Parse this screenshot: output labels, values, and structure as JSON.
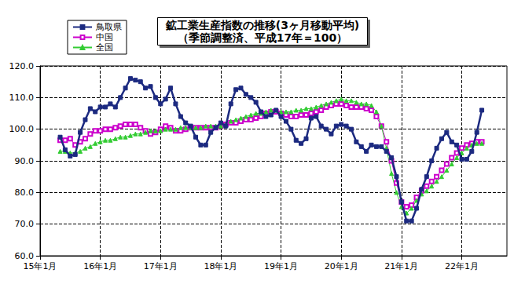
{
  "chart_data": {
    "type": "line",
    "title": "鉱工業生産指数の推移(3ヶ月移動平均)",
    "subtitle": "（季節調整済、平成17年＝100）",
    "categories": [
      "15年1月",
      null,
      null,
      null,
      null,
      null,
      null,
      null,
      null,
      null,
      null,
      null,
      "16年1月",
      null,
      null,
      null,
      null,
      null,
      null,
      null,
      null,
      null,
      null,
      null,
      "17年1月",
      null,
      null,
      null,
      null,
      null,
      null,
      null,
      null,
      null,
      null,
      null,
      "18年1月",
      null,
      null,
      null,
      null,
      null,
      null,
      null,
      null,
      null,
      null,
      null,
      "19年1月",
      null,
      null,
      null,
      null,
      null,
      null,
      null,
      null,
      null,
      null,
      null,
      "20年1月",
      null,
      null,
      null,
      null,
      null,
      null,
      null,
      null,
      null,
      null,
      null,
      "21年1月",
      null,
      null,
      null,
      null,
      null,
      null,
      null,
      null,
      null,
      null,
      null,
      "22年1月",
      null,
      null,
      null,
      null,
      null,
      null,
      null,
      null,
      null
    ],
    "series": [
      {
        "name": "鳥取県",
        "color": "#1c2a80",
        "marker": "square",
        "values": [
          null,
          null,
          null,
          null,
          97.5,
          93.5,
          91.5,
          92,
          99,
          103,
          106.5,
          105.5,
          107,
          107,
          108,
          107,
          110,
          113,
          116,
          115.5,
          115,
          113,
          113.5,
          110,
          108,
          109.5,
          113,
          108,
          104,
          102,
          101,
          97.5,
          95,
          95,
          99,
          100.5,
          102,
          101,
          108,
          112.5,
          113,
          111,
          110,
          108.5,
          105.5,
          104,
          104.5,
          106,
          104,
          102.5,
          100,
          96.5,
          95.5,
          97,
          103.5,
          104,
          101,
          100,
          98.5,
          101,
          101.5,
          101,
          100,
          96,
          94.5,
          93,
          95,
          94.5,
          94.5,
          93,
          91,
          85,
          77,
          71,
          71,
          75,
          81,
          85,
          90,
          94,
          97,
          99,
          96,
          95,
          90.5,
          90.5,
          93,
          99,
          106,
          null,
          null,
          null,
          null,
          null
        ]
      },
      {
        "name": "中国",
        "color": "#cc00cc",
        "marker": "square_open",
        "values": [
          null,
          null,
          null,
          null,
          96.5,
          96.5,
          97,
          95,
          96,
          97,
          98.5,
          99.5,
          99.5,
          100,
          100,
          100.5,
          101,
          101.5,
          101.5,
          101.5,
          100.5,
          99.5,
          98.5,
          99,
          100,
          101,
          100.5,
          99.5,
          99.5,
          100,
          100.5,
          100.5,
          100.5,
          100.5,
          100.5,
          100.5,
          101,
          101.5,
          102,
          102,
          102.5,
          103,
          103,
          103.5,
          104,
          105,
          105.5,
          105.5,
          105,
          104.5,
          104,
          104,
          104.5,
          104.5,
          105,
          105.5,
          106,
          107,
          107.5,
          108,
          108,
          107.5,
          107,
          107,
          107,
          106.5,
          106,
          104,
          101,
          96,
          90,
          83,
          77,
          75.5,
          76,
          78.5,
          80.5,
          82,
          83.5,
          85,
          87,
          89,
          91,
          92.5,
          94,
          95,
          95.5,
          96,
          96,
          null,
          null,
          null,
          null,
          null
        ]
      },
      {
        "name": "全国",
        "color": "#33cc33",
        "marker": "triangle",
        "values": [
          null,
          null,
          null,
          null,
          93,
          93,
          92.5,
          92.5,
          93,
          94,
          94.5,
          95.5,
          96,
          96.5,
          96.5,
          97,
          97.5,
          97.5,
          98,
          98.5,
          98.5,
          99,
          99.5,
          99.5,
          99.5,
          100,
          100,
          100,
          100.5,
          100.5,
          100.5,
          100.5,
          100.5,
          101,
          101,
          101,
          101,
          101.5,
          102.5,
          103,
          103.5,
          104,
          104.5,
          105,
          105,
          105.5,
          106,
          106,
          105.5,
          105.5,
          105.5,
          106,
          106,
          106.5,
          106.5,
          107,
          107.5,
          108,
          108.5,
          109,
          109.5,
          109,
          109,
          108.5,
          108,
          108,
          107.5,
          105.5,
          101,
          94,
          86,
          80,
          75.5,
          73.5,
          75,
          77.5,
          79.5,
          80.5,
          82,
          83.5,
          85,
          87,
          89,
          91,
          92.5,
          94,
          95,
          95.5,
          95.5,
          null,
          null,
          null,
          null,
          null
        ]
      }
    ],
    "ylim": [
      60,
      120
    ],
    "yticks": [
      {
        "value": 60,
        "label": "60.0"
      },
      {
        "value": 70,
        "label": "70.0"
      },
      {
        "value": 80,
        "label": "80.0"
      },
      {
        "value": 90,
        "label": "90.0"
      },
      {
        "value": 100,
        "label": "100.0"
      },
      {
        "value": 110,
        "label": "110.0"
      },
      {
        "value": 120,
        "label": "120.0"
      }
    ],
    "grid": true,
    "legend": "upper left"
  }
}
